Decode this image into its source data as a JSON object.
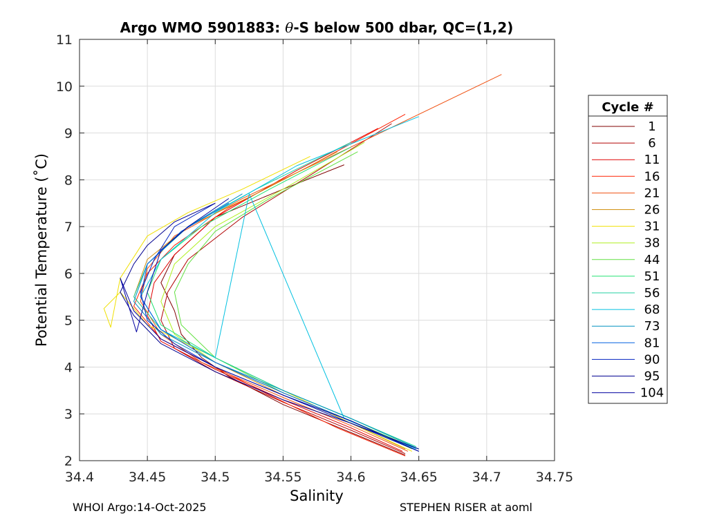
{
  "chart_data": {
    "type": "line",
    "title": "Argo WMO 5901883: θ-S below 500 dbar,  QC=(1,2)",
    "title_prefix": "Argo WMO 5901883: ",
    "title_theta": "θ",
    "title_suffix": "-S below 500 dbar,  QC=(1,2)",
    "xlabel": "Salinity",
    "ylabel": "Potential Temperature (˚C)",
    "xlim": [
      34.4,
      34.75
    ],
    "ylim": [
      2,
      11
    ],
    "xticks": [
      34.4,
      34.45,
      34.5,
      34.55,
      34.6,
      34.65,
      34.7,
      34.75
    ],
    "xtick_labels": [
      "34.4",
      "34.45",
      "34.5",
      "34.55",
      "34.6",
      "34.65",
      "34.7",
      "34.75"
    ],
    "yticks": [
      2,
      3,
      4,
      5,
      6,
      7,
      8,
      9,
      10,
      11
    ],
    "ytick_labels": [
      "2",
      "3",
      "4",
      "5",
      "6",
      "7",
      "8",
      "9",
      "10",
      "11"
    ],
    "grid": true,
    "legend": {
      "title": "Cycle #",
      "placement": "right",
      "entries": [
        {
          "label": "1",
          "color": "#800000"
        },
        {
          "label": "6",
          "color": "#b00000"
        },
        {
          "label": "11",
          "color": "#e00000"
        },
        {
          "label": "16",
          "color": "#ff2000"
        },
        {
          "label": "21",
          "color": "#f05010"
        },
        {
          "label": "26",
          "color": "#d09010"
        },
        {
          "label": "31",
          "color": "#f0e000"
        },
        {
          "label": "38",
          "color": "#b0f020"
        },
        {
          "label": "44",
          "color": "#60e040"
        },
        {
          "label": "51",
          "color": "#20e070"
        },
        {
          "label": "56",
          "color": "#20d0a0"
        },
        {
          "label": "68",
          "color": "#00c0e0"
        },
        {
          "label": "73",
          "color": "#0090c0"
        },
        {
          "label": "81",
          "color": "#0060e0"
        },
        {
          "label": "90",
          "color": "#0020c0"
        },
        {
          "label": "95",
          "color": "#000090"
        },
        {
          "label": "104",
          "color": "#0000a0"
        }
      ]
    },
    "series": [
      {
        "name": "1",
        "color": "#800000",
        "x": [
          34.64,
          34.6,
          34.55,
          34.51,
          34.49,
          34.475,
          34.47,
          34.46,
          34.47,
          34.5,
          34.55,
          34.595
        ],
        "y": [
          2.12,
          2.6,
          3.2,
          3.8,
          4.2,
          4.7,
          5.2,
          5.8,
          6.4,
          7.2,
          7.8,
          8.32
        ]
      },
      {
        "name": "6",
        "color": "#b00000",
        "x": [
          34.64,
          34.6,
          34.55,
          34.5,
          34.47,
          34.46,
          34.465,
          34.48,
          34.52,
          34.57,
          34.63
        ],
        "y": [
          2.15,
          2.65,
          3.25,
          3.9,
          4.4,
          5.0,
          5.6,
          6.3,
          7.2,
          8.1,
          9.2
        ]
      },
      {
        "name": "11",
        "color": "#e00000",
        "x": [
          34.638,
          34.6,
          34.55,
          34.5,
          34.46,
          34.45,
          34.455,
          34.47,
          34.5,
          34.56,
          34.62
        ],
        "y": [
          2.2,
          2.7,
          3.3,
          3.95,
          4.55,
          5.1,
          5.8,
          6.4,
          7.2,
          8.2,
          9.1
        ]
      },
      {
        "name": "16",
        "color": "#ff2000",
        "x": [
          34.64,
          34.59,
          34.54,
          34.5,
          34.46,
          34.44,
          34.45,
          34.47,
          34.51,
          34.57,
          34.64
        ],
        "y": [
          2.1,
          2.7,
          3.4,
          4.0,
          4.6,
          5.3,
          6.0,
          6.6,
          7.4,
          8.3,
          9.4
        ]
      },
      {
        "name": "21",
        "color": "#f05010",
        "x": [
          34.642,
          34.6,
          34.55,
          34.49,
          34.46,
          34.445,
          34.45,
          34.47,
          34.52,
          34.6,
          34.711
        ],
        "y": [
          2.2,
          2.75,
          3.35,
          4.1,
          4.7,
          5.4,
          6.1,
          6.8,
          7.6,
          8.7,
          10.25
        ]
      },
      {
        "name": "26",
        "color": "#d09010",
        "x": [
          34.64,
          34.6,
          34.55,
          34.5,
          34.46,
          34.44,
          34.45,
          34.48,
          34.53,
          34.59
        ],
        "y": [
          2.25,
          2.8,
          3.4,
          4.1,
          4.8,
          5.5,
          6.3,
          7.0,
          7.7,
          8.6
        ]
      },
      {
        "name": "31",
        "color": "#f0e000",
        "x": [
          34.645,
          34.6,
          34.55,
          34.5,
          34.45,
          34.43,
          34.418,
          34.423,
          34.43,
          34.45,
          34.48,
          34.52,
          34.57
        ],
        "y": [
          2.2,
          2.8,
          3.5,
          4.2,
          4.9,
          5.6,
          5.25,
          4.85,
          5.9,
          6.8,
          7.3,
          7.8,
          8.5
        ]
      },
      {
        "name": "38",
        "color": "#b0f020",
        "x": [
          34.645,
          34.6,
          34.55,
          34.5,
          34.47,
          34.46,
          34.47,
          34.5,
          34.55,
          34.61
        ],
        "y": [
          2.25,
          2.85,
          3.45,
          4.1,
          4.7,
          5.4,
          6.2,
          7.0,
          7.8,
          8.8
        ]
      },
      {
        "name": "44",
        "color": "#60e040",
        "x": [
          34.645,
          34.6,
          34.55,
          34.5,
          34.475,
          34.47,
          34.48,
          34.5,
          34.54,
          34.605
        ],
        "y": [
          2.3,
          2.85,
          3.45,
          4.2,
          4.9,
          5.6,
          6.2,
          6.9,
          7.6,
          8.6
        ]
      },
      {
        "name": "51",
        "color": "#20e070",
        "x": [
          34.648,
          34.6,
          34.55,
          34.5,
          34.46,
          34.45,
          34.46,
          34.49,
          34.54,
          34.6
        ],
        "y": [
          2.3,
          2.9,
          3.5,
          4.2,
          4.9,
          5.6,
          6.3,
          7.0,
          7.8,
          8.7
        ]
      },
      {
        "name": "56",
        "color": "#20d0a0",
        "x": [
          34.648,
          34.6,
          34.55,
          34.5,
          34.46,
          34.44,
          34.45,
          34.48,
          34.53,
          34.6
        ],
        "y": [
          2.3,
          2.9,
          3.5,
          4.2,
          4.8,
          5.5,
          6.2,
          7.0,
          7.8,
          8.8
        ]
      },
      {
        "name": "68",
        "color": "#00c0e0",
        "x": [
          34.648,
          34.595,
          34.525,
          34.5,
          34.46,
          34.445,
          34.46,
          34.5,
          34.56,
          34.65
        ],
        "y": [
          2.25,
          2.9,
          7.7,
          4.2,
          4.8,
          5.5,
          6.3,
          7.3,
          8.3,
          9.35
        ]
      },
      {
        "name": "73",
        "color": "#0090c0",
        "x": [
          34.65,
          34.6,
          34.55,
          34.5,
          34.46,
          34.44,
          34.45,
          34.48,
          34.52
        ],
        "y": [
          2.25,
          2.9,
          3.5,
          4.1,
          4.7,
          5.4,
          6.2,
          7.0,
          7.7
        ]
      },
      {
        "name": "81",
        "color": "#0060e0",
        "x": [
          34.65,
          34.6,
          34.55,
          34.5,
          34.46,
          34.445,
          34.45,
          34.475,
          34.51
        ],
        "y": [
          2.2,
          2.85,
          3.45,
          4.1,
          4.8,
          5.5,
          6.2,
          6.9,
          7.5
        ]
      },
      {
        "name": "90",
        "color": "#0020c0",
        "x": [
          34.65,
          34.6,
          34.55,
          34.5,
          34.47,
          34.45,
          34.445,
          34.455,
          34.47,
          34.5
        ],
        "y": [
          2.2,
          2.8,
          3.4,
          4.0,
          4.5,
          5.0,
          5.6,
          6.3,
          7.0,
          7.5
        ]
      },
      {
        "name": "95",
        "color": "#000090",
        "x": [
          34.65,
          34.6,
          34.55,
          34.5,
          34.46,
          34.44,
          34.43,
          34.44,
          34.45,
          34.47,
          34.5
        ],
        "y": [
          2.25,
          2.8,
          3.3,
          3.9,
          4.5,
          5.1,
          5.6,
          6.2,
          6.6,
          7.1,
          7.5
        ]
      },
      {
        "name": "104",
        "color": "#0000a0",
        "x": [
          34.65,
          34.6,
          34.55,
          34.5,
          34.46,
          34.44,
          34.43,
          34.442,
          34.45,
          34.46,
          34.48,
          34.51
        ],
        "y": [
          2.2,
          2.85,
          3.4,
          4.0,
          4.6,
          5.2,
          5.9,
          4.75,
          5.6,
          6.5,
          7.0,
          7.6
        ]
      }
    ]
  },
  "footer": {
    "left": "WHOI Argo:14-Oct-2025",
    "right": "STEPHEN RISER at aoml"
  }
}
